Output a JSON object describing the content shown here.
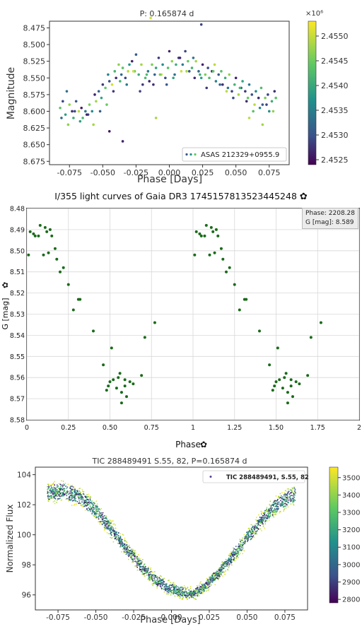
{
  "panels": {
    "asas": {
      "title": "P: 0.165874 d",
      "chart_data": {
        "type": "scatter",
        "title": "P: 0.165874 d",
        "xlabel": "Phase [Days]",
        "ylabel": "Magnitude",
        "xlim": [
          -0.09,
          0.09
        ],
        "ylim": [
          8.68,
          8.465
        ],
        "xticks": [
          "-0.075",
          "-0.050",
          "-0.025",
          "0.000",
          "0.025",
          "0.050",
          "0.075"
        ],
        "xtick_values": [
          -0.075,
          -0.05,
          -0.025,
          0.0,
          0.025,
          0.05,
          0.075
        ],
        "yticks": [
          "8.475",
          "8.500",
          "8.525",
          "8.550",
          "8.575",
          "8.600",
          "8.625",
          "8.650",
          "8.675"
        ],
        "ytick_values": [
          8.475,
          8.5,
          8.525,
          8.55,
          8.575,
          8.6,
          8.625,
          8.65,
          8.675
        ],
        "legend": "ASAS 212329+0955.9",
        "legend_position": "lower-right",
        "colorbar": {
          "ticks": [
            "2.4525",
            "2.4530",
            "2.4535",
            "2.4540",
            "2.4545",
            "2.4550"
          ],
          "tick_values": [
            2.4525,
            2.453,
            2.4535,
            2.454,
            2.4545,
            2.455
          ],
          "range": [
            2.4524,
            2.4553
          ],
          "multiplier": "×10⁶",
          "colormap": "viridis"
        },
        "series": [
          {
            "x": [
              -0.082,
              -0.08,
              -0.078,
              -0.077,
              -0.075,
              -0.073,
              -0.072,
              -0.07,
              -0.068,
              -0.066,
              -0.065,
              -0.063,
              -0.061,
              -0.06,
              -0.058,
              -0.056,
              -0.055,
              -0.053,
              -0.051,
              -0.05,
              -0.048,
              -0.046,
              -0.045,
              -0.043,
              -0.041,
              -0.04,
              -0.038,
              -0.036,
              -0.035,
              -0.033,
              -0.031,
              -0.03,
              -0.028,
              -0.026,
              -0.025,
              -0.023,
              -0.021,
              -0.02,
              -0.018,
              -0.016,
              -0.015,
              -0.013,
              -0.011,
              -0.01,
              -0.008,
              -0.006,
              -0.005,
              -0.003,
              -0.001,
              0.0,
              0.002,
              0.004,
              0.005,
              0.007,
              0.009,
              0.01,
              0.012,
              0.014,
              0.015,
              0.017,
              0.019,
              0.02,
              0.022,
              0.024,
              0.025,
              0.027,
              0.029,
              0.03,
              0.032,
              0.034,
              0.035,
              0.037,
              0.039,
              0.04,
              0.042,
              0.044,
              0.045,
              0.047,
              0.049,
              0.05,
              0.052,
              0.054,
              0.055,
              0.057,
              0.059,
              0.06,
              0.062,
              0.064,
              0.065,
              0.067,
              0.069,
              0.07,
              0.072,
              0.074,
              0.075,
              0.077,
              0.079,
              0.08,
              -0.081,
              -0.076,
              -0.071,
              -0.067,
              -0.062,
              -0.057,
              -0.052,
              -0.047,
              -0.042,
              -0.037,
              -0.032,
              -0.027,
              -0.022,
              -0.017,
              -0.012,
              -0.007,
              -0.002,
              0.003,
              0.008,
              0.013,
              0.018,
              0.023,
              0.028,
              0.033,
              0.038,
              0.043,
              0.048,
              0.053,
              0.058,
              0.063,
              0.068,
              0.073,
              0.078,
              -0.045,
              -0.035,
              -0.014,
              -0.01,
              0.024,
              0.06,
              0.07
            ],
            "y": [
              8.595,
              8.585,
              8.605,
              8.57,
              8.59,
              8.6,
              8.61,
              8.585,
              8.6,
              8.595,
              8.61,
              8.6,
              8.605,
              8.59,
              8.6,
              8.575,
              8.585,
              8.57,
              8.58,
              8.56,
              8.565,
              8.545,
              8.555,
              8.56,
              8.54,
              8.55,
              8.53,
              8.545,
              8.535,
              8.55,
              8.54,
              8.53,
              8.525,
              8.54,
              8.515,
              8.545,
              8.53,
              8.56,
              8.55,
              8.54,
              8.555,
              8.53,
              8.545,
              8.535,
              8.52,
              8.545,
              8.53,
              8.55,
              8.535,
              8.51,
              8.525,
              8.545,
              8.53,
              8.52,
              8.54,
              8.53,
              8.51,
              8.525,
              8.54,
              8.535,
              8.55,
              8.525,
              8.54,
              8.55,
              8.53,
              8.545,
              8.535,
              8.55,
              8.54,
              8.53,
              8.555,
              8.545,
              8.54,
              8.56,
              8.55,
              8.565,
              8.545,
              8.57,
              8.56,
              8.55,
              8.575,
              8.565,
              8.555,
              8.57,
              8.58,
              8.56,
              8.575,
              8.59,
              8.57,
              8.58,
              8.565,
              8.59,
              8.58,
              8.575,
              8.6,
              8.585,
              8.57,
              8.58,
              8.61,
              8.62,
              8.6,
              8.615,
              8.605,
              8.62,
              8.6,
              8.59,
              8.57,
              8.555,
              8.56,
              8.54,
              8.57,
              8.545,
              8.56,
              8.545,
              8.56,
              8.55,
              8.52,
              8.54,
              8.52,
              8.545,
              8.565,
              8.54,
              8.56,
              8.57,
              8.58,
              8.565,
              8.585,
              8.6,
              8.595,
              8.59,
              8.6,
              8.63,
              8.645,
              8.46,
              8.61,
              8.47,
              8.61,
              8.62
            ],
            "c": [
              2.4545,
              2.453,
              2.454,
              2.4535,
              2.4548,
              2.4528,
              2.4542,
              2.4532,
              2.455,
              2.4526,
              2.4544,
              2.4536,
              2.453,
              2.4547,
              2.4538,
              2.4527,
              2.4549,
              2.4533,
              2.4541,
              2.4529,
              2.4546,
              2.4537,
              2.4531,
              2.4551,
              2.4543,
              2.4528,
              2.4548,
              2.4534,
              2.4545,
              2.453,
              2.455,
              2.4539,
              2.4527,
              2.4546,
              2.4532,
              2.4542,
              2.4549,
              2.4529,
              2.4544,
              2.4536,
              2.4527,
              2.4547,
              2.4533,
              2.4541,
              2.4529,
              2.455,
              2.4538,
              2.4531,
              2.4545,
              2.4527,
              2.4548,
              2.4535,
              2.4542,
              2.4529,
              2.4551,
              2.4536,
              2.453,
              2.4546,
              2.4532,
              2.4543,
              2.4528,
              2.4549,
              2.4534,
              2.454,
              2.4527,
              2.4547,
              2.4531,
              2.4544,
              2.4529,
              2.455,
              2.4537,
              2.4532,
              2.4545,
              2.4528,
              2.4542,
              2.4535,
              2.4548,
              2.453,
              2.4543,
              2.4527,
              2.4549,
              2.4533,
              2.4541,
              2.4529,
              2.4546,
              2.4536,
              2.4531,
              2.455,
              2.4538,
              2.4528,
              2.4544,
              2.4532,
              2.4547,
              2.453,
              2.4539,
              2.4542,
              2.4528,
              2.4545,
              2.4534,
              2.4548,
              2.4531,
              2.454,
              2.4527,
              2.4549,
              2.4533,
              2.4546,
              2.4529,
              2.4543,
              2.4536,
              2.4551,
              2.453,
              2.4544,
              2.4528,
              2.4547,
              2.4532,
              2.4541,
              2.4527,
              2.4549,
              2.4535,
              2.4542,
              2.4529,
              2.4546,
              2.4533,
              2.455,
              2.4531,
              2.4543,
              2.4528,
              2.4545,
              2.4537,
              2.453,
              2.4548,
              2.4526,
              2.4527,
              2.4551,
              2.4549,
              2.453,
              2.455,
              2.4549
            ]
          }
        ]
      }
    },
    "gaia": {
      "title": "I/355 light curves of Gaia DR3 1745157813523445248",
      "tooltip": {
        "phase_line": "Phase: 2208.28",
        "g_line": "G [mag]: 8.589"
      },
      "chart_data": {
        "type": "scatter",
        "title": "I/355 light curves of Gaia DR3 1745157813523445248",
        "xlabel": "Phase",
        "ylabel": "G [mag]",
        "xlim": [
          0,
          2
        ],
        "ylim": [
          8.48,
          8.58
        ],
        "xticks": [
          "0",
          "0.25",
          "0.50",
          "0.75",
          "1",
          "1.25",
          "1.50",
          "1.75",
          "2"
        ],
        "xtick_values": [
          0,
          0.25,
          0.5,
          0.75,
          1,
          1.25,
          1.5,
          1.75,
          2
        ],
        "yticks": [
          "8.48",
          "8.49",
          "8.50",
          "8.51",
          "8.52",
          "8.53",
          "8.54",
          "8.55",
          "8.56",
          "8.57",
          "8.58"
        ],
        "ytick_values": [
          8.48,
          8.49,
          8.5,
          8.51,
          8.52,
          8.53,
          8.54,
          8.55,
          8.56,
          8.57,
          8.58
        ],
        "grid": true,
        "color": "#1a6b1a",
        "series": [
          {
            "x": [
              0.02,
              0.04,
              0.05,
              0.07,
              0.08,
              0.1,
              0.12,
              0.13,
              0.15,
              0.17,
              0.18,
              0.2,
              0.22,
              0.25,
              0.28,
              0.31,
              0.32,
              0.4,
              0.46,
              0.49,
              0.5,
              0.51,
              0.52,
              0.54,
              0.55,
              0.56,
              0.57,
              0.59,
              0.6,
              0.62,
              0.64,
              0.69,
              0.71,
              0.77,
              0.01,
              0.11,
              0.14,
              0.57,
              0.59,
              0.48
            ],
            "y": [
              8.491,
              8.492,
              8.493,
              8.493,
              8.488,
              8.502,
              8.491,
              8.501,
              8.493,
              8.499,
              8.504,
              8.51,
              8.508,
              8.516,
              8.528,
              8.523,
              8.523,
              8.538,
              8.554,
              8.564,
              8.562,
              8.546,
              8.561,
              8.565,
              8.56,
              8.558,
              8.572,
              8.561,
              8.569,
              8.562,
              8.563,
              8.559,
              8.541,
              8.534,
              8.502,
              8.489,
              8.49,
              8.567,
              8.564,
              8.566
            ]
          }
        ],
        "repeat_offset": 1
      }
    },
    "tess": {
      "title": "TIC 288489491 S.55, 82, P=0.165874 d",
      "chart_data": {
        "type": "scatter",
        "title": "TIC 288489491 S.55, 82, P=0.165874 d",
        "xlabel": "Phase [Days]",
        "ylabel": "Normalized Flux",
        "xlim": [
          -0.09,
          0.09
        ],
        "ylim": [
          95,
          104.5
        ],
        "xticks": [
          "-0.075",
          "-0.050",
          "-0.025",
          "0.000",
          "0.025",
          "0.050",
          "0.075"
        ],
        "xtick_values": [
          -0.075,
          -0.05,
          -0.025,
          0.0,
          0.025,
          0.05,
          0.075
        ],
        "yticks": [
          "96",
          "98",
          "100",
          "102",
          "104"
        ],
        "ytick_values": [
          96,
          98,
          100,
          102,
          104
        ],
        "legend": "TIC 288489491, S.55, 82",
        "legend_position": "top-right",
        "colorbar": {
          "ticks": [
            "2800",
            "2900",
            "3000",
            "3100",
            "3200",
            "3300",
            "3400",
            "3500"
          ],
          "tick_values": [
            2800,
            2900,
            3000,
            3100,
            3200,
            3300,
            3400,
            3500
          ],
          "range": [
            2780,
            3560
          ],
          "colormap": "viridis"
        },
        "band_curve": {
          "x": [
            -0.082,
            -0.07,
            -0.06,
            -0.05,
            -0.04,
            -0.03,
            -0.02,
            -0.01,
            0.0,
            0.01,
            0.015,
            0.02,
            0.03,
            0.04,
            0.05,
            0.06,
            0.07,
            0.082
          ],
          "y": [
            102.8,
            102.9,
            102.5,
            101.6,
            100.4,
            99.1,
            97.9,
            96.9,
            96.4,
            96.1,
            96.1,
            96.4,
            97.3,
            98.5,
            99.8,
            101.0,
            102.0,
            102.7
          ],
          "half_width": [
            0.75,
            0.8,
            0.75,
            0.7,
            0.7,
            0.65,
            0.6,
            0.55,
            0.55,
            0.5,
            0.5,
            0.5,
            0.55,
            0.6,
            0.65,
            0.7,
            0.75,
            0.75
          ]
        }
      }
    }
  }
}
